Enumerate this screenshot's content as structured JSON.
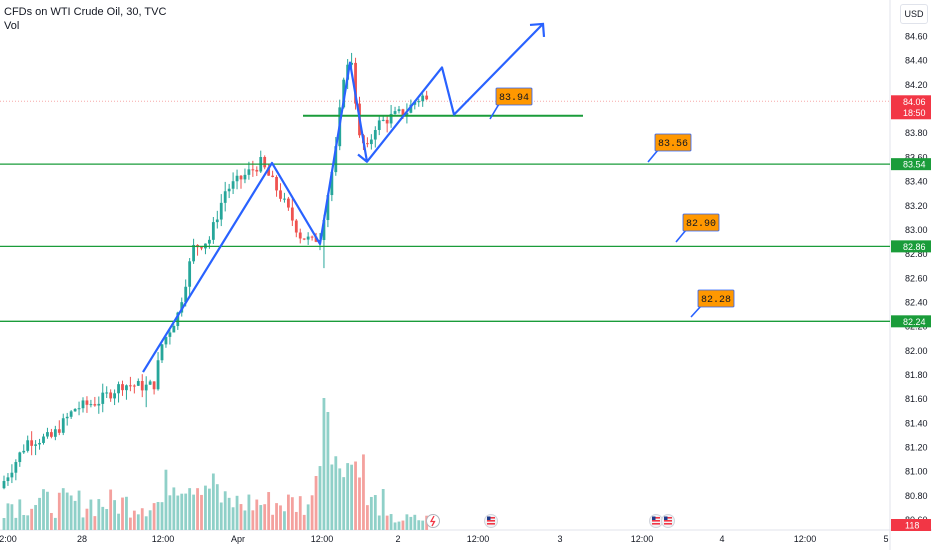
{
  "header": {
    "title": "CFDs on WTI Crude Oil, 30, TVC",
    "volume_label": "Vol",
    "currency_button": "USD"
  },
  "colors": {
    "up": "#26a69a",
    "down": "#ef5350",
    "vol_up": "#8fd0c8",
    "vol_down": "#f4a19e",
    "support": "#1a9c3a",
    "trend": "#2962ff",
    "callout": "#ff9800",
    "current_price": "#f23645",
    "dotted": "#f7a8a8"
  },
  "chart_data": {
    "type": "candlestick",
    "title": "CFDs on WTI Crude Oil, 30, TVC",
    "ylim": [
      80.58,
      84.86
    ],
    "y_ticks": [
      "84.60",
      "84.40",
      "84.20",
      "84.00",
      "83.80",
      "83.60",
      "83.40",
      "83.20",
      "83.00",
      "82.80",
      "82.60",
      "82.40",
      "82.20",
      "82.00",
      "81.80",
      "81.60",
      "81.40",
      "81.20",
      "81.00",
      "80.80",
      "80.60"
    ],
    "x_ticks": [
      "2:00",
      "28",
      "12:00",
      "Apr",
      "12:00",
      "2",
      "12:00",
      "3",
      "12:00",
      "4",
      "12:00",
      "5"
    ],
    "current_price": {
      "value": "84.06",
      "countdown": "18:50"
    },
    "volume_value": "118",
    "horizontal_levels": [
      {
        "tag": "83.54",
        "value": 83.54
      },
      {
        "tag": "82.86",
        "value": 82.86
      },
      {
        "tag": "82.24",
        "value": 82.24
      }
    ],
    "annotations": [
      {
        "label": "83.94",
        "value": 83.94
      },
      {
        "label": "83.56",
        "value": 83.56
      },
      {
        "label": "82.90",
        "value": 82.9
      },
      {
        "label": "82.28",
        "value": 82.28
      }
    ],
    "trend_path": [
      {
        "x": "28 12:00",
        "y": 81.82
      },
      {
        "x": "Apr 00:00",
        "y": 83.55
      },
      {
        "x": "Apr 06:00",
        "y": 82.88
      },
      {
        "x": "Apr 12:00",
        "y": 84.38
      },
      {
        "x": "Apr 18:00",
        "y": 83.56
      },
      {
        "x": "2 06:00",
        "y": 84.34
      },
      {
        "x": "2 09:00",
        "y": 83.95
      },
      {
        "x": "2 18:00",
        "y": 84.7
      }
    ],
    "trend_segment_extra": [
      {
        "x": "Apr 17:00",
        "y": 83.62
      },
      {
        "x": "Apr 18:00",
        "y": 83.56
      }
    ],
    "series_ohlc_source": "estimated from screenshot"
  }
}
